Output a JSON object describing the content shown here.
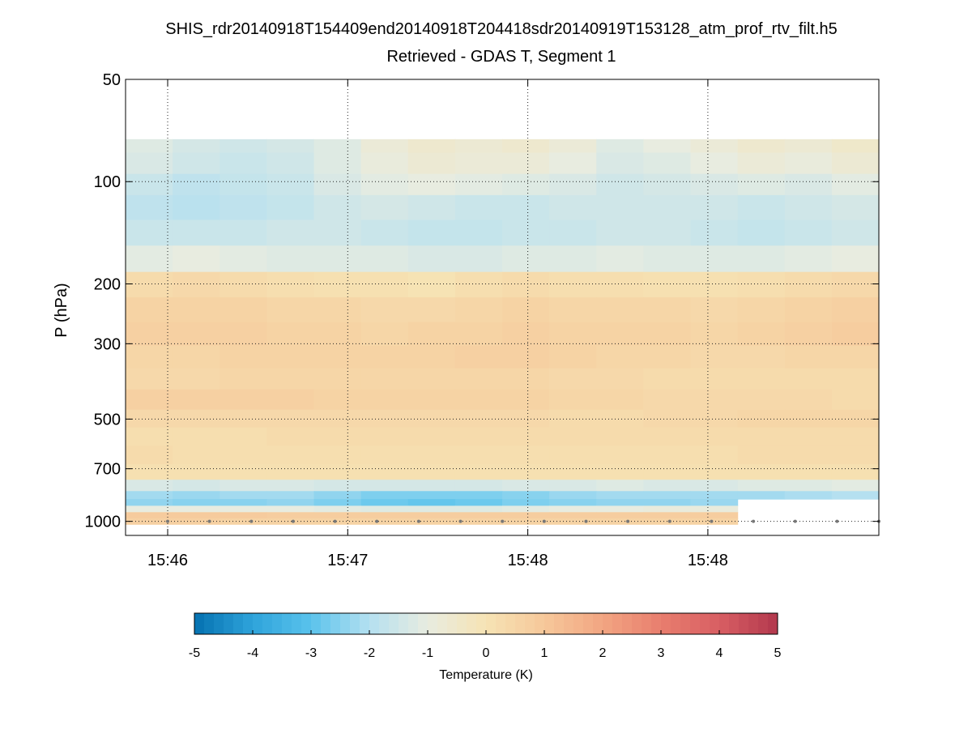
{
  "chart_data": {
    "type": "heatmap",
    "title": "SHIS_rdr20140918T154409end20140918T204418sdr20140919T153128_atm_prof_rtv_filt.h5",
    "subtitle": "Retrieved - GDAS T, Segment 1",
    "xlabel": "",
    "ylabel": "P (hPa)",
    "y_scale": "log",
    "y_reversed": true,
    "ylim": [
      50,
      1100
    ],
    "yticks": [
      50,
      100,
      200,
      300,
      500,
      700,
      1000
    ],
    "xticks": [
      "15:46",
      "15:47",
      "15:48",
      "15:48"
    ],
    "grid": "dotted",
    "colorbar": {
      "label": "Temperature (K)",
      "range": [
        -5,
        5
      ],
      "ticks": [
        -5,
        -4,
        -3,
        -2,
        -1,
        0,
        1,
        2,
        3,
        4,
        5
      ],
      "colors": [
        "#0571b0",
        "#2ea3db",
        "#5ac3ec",
        "#b5e0f0",
        "#e8ece0",
        "#f6e3b4",
        "#f6c89a",
        "#f2a582",
        "#e87e6e",
        "#d85e63",
        "#b2384d"
      ]
    },
    "profiles": {
      "pressure_levels_hPa": [
        75,
        90,
        100,
        120,
        140,
        170,
        200,
        240,
        280,
        330,
        380,
        440,
        500,
        560,
        640,
        720,
        790,
        840,
        880,
        920,
        960,
        1000
      ],
      "columns": 16,
      "values_K": [
        [
          -1.2,
          -1.4,
          -1.5,
          -1.4,
          -1.2,
          -0.8,
          -0.6,
          -0.7,
          -0.6,
          -0.8,
          -1.2,
          -1.0,
          -0.8,
          -0.6,
          -0.7,
          -0.5
        ],
        [
          -1.3,
          -1.5,
          -1.6,
          -1.5,
          -1.2,
          -0.9,
          -0.7,
          -0.8,
          -0.8,
          -1.0,
          -1.3,
          -1.2,
          -1.0,
          -0.8,
          -0.9,
          -0.7
        ],
        [
          -1.6,
          -1.8,
          -1.7,
          -1.6,
          -1.3,
          -1.1,
          -1.0,
          -1.1,
          -1.2,
          -1.3,
          -1.5,
          -1.4,
          -1.3,
          -1.2,
          -1.3,
          -1.1
        ],
        [
          -1.8,
          -1.9,
          -1.8,
          -1.7,
          -1.5,
          -1.4,
          -1.5,
          -1.6,
          -1.6,
          -1.5,
          -1.5,
          -1.5,
          -1.5,
          -1.6,
          -1.5,
          -1.4
        ],
        [
          -1.6,
          -1.6,
          -1.6,
          -1.5,
          -1.5,
          -1.6,
          -1.7,
          -1.7,
          -1.6,
          -1.6,
          -1.5,
          -1.5,
          -1.6,
          -1.7,
          -1.6,
          -1.5
        ],
        [
          -1.1,
          -1.0,
          -1.1,
          -1.2,
          -1.2,
          -1.2,
          -1.3,
          -1.3,
          -1.2,
          -1.2,
          -1.1,
          -1.2,
          -1.2,
          -1.2,
          -1.1,
          -1.0
        ],
        [
          0.3,
          0.4,
          0.3,
          0.2,
          0.1,
          0.1,
          0.0,
          0.2,
          0.3,
          0.2,
          0.2,
          0.1,
          0.1,
          0.2,
          0.3,
          0.4
        ],
        [
          0.6,
          0.6,
          0.6,
          0.5,
          0.5,
          0.4,
          0.4,
          0.5,
          0.6,
          0.5,
          0.5,
          0.5,
          0.4,
          0.5,
          0.6,
          0.7
        ],
        [
          0.7,
          0.7,
          0.7,
          0.6,
          0.6,
          0.5,
          0.6,
          0.6,
          0.7,
          0.6,
          0.6,
          0.6,
          0.5,
          0.6,
          0.7,
          0.8
        ],
        [
          0.5,
          0.5,
          0.6,
          0.6,
          0.6,
          0.6,
          0.6,
          0.7,
          0.7,
          0.6,
          0.5,
          0.5,
          0.4,
          0.4,
          0.5,
          0.5
        ],
        [
          0.4,
          0.4,
          0.5,
          0.5,
          0.5,
          0.5,
          0.5,
          0.5,
          0.5,
          0.4,
          0.4,
          0.3,
          0.3,
          0.3,
          0.3,
          0.3
        ],
        [
          0.7,
          0.7,
          0.7,
          0.7,
          0.6,
          0.6,
          0.6,
          0.6,
          0.6,
          0.5,
          0.5,
          0.4,
          0.4,
          0.4,
          0.4,
          0.3
        ],
        [
          0.4,
          0.4,
          0.4,
          0.4,
          0.4,
          0.4,
          0.4,
          0.4,
          0.4,
          0.3,
          0.3,
          0.4,
          0.4,
          0.5,
          0.5,
          0.5
        ],
        [
          0.2,
          0.2,
          0.2,
          0.3,
          0.3,
          0.3,
          0.3,
          0.3,
          0.3,
          0.3,
          0.3,
          0.3,
          0.3,
          0.3,
          0.3,
          0.3
        ],
        [
          0.3,
          0.2,
          0.2,
          0.2,
          0.2,
          0.2,
          0.2,
          0.2,
          0.2,
          0.2,
          0.2,
          0.2,
          0.2,
          0.3,
          0.3,
          0.3
        ],
        [
          0.1,
          0.1,
          0.1,
          0.1,
          0.1,
          0.1,
          0.1,
          0.1,
          0.1,
          0.1,
          0.1,
          0.1,
          0.1,
          0.1,
          0.1,
          0.1
        ],
        [
          -1.3,
          -1.4,
          -1.3,
          -1.3,
          -1.4,
          -1.4,
          -1.4,
          -1.4,
          -1.3,
          -1.3,
          -1.2,
          -1.3,
          -1.3,
          -1.2,
          -1.2,
          -1.1
        ],
        [
          -2.2,
          -2.3,
          -2.2,
          -2.2,
          -2.4,
          -2.6,
          -2.6,
          -2.6,
          -2.5,
          -2.3,
          -2.2,
          -2.2,
          -2.2,
          -2.2,
          -2.1,
          -2.0
        ],
        [
          -2.4,
          -2.5,
          -2.5,
          -2.4,
          -2.6,
          -2.8,
          -2.9,
          -2.8,
          -2.6,
          -2.5,
          -2.4,
          -2.4,
          -2.3,
          null,
          null,
          null
        ],
        [
          -1.0,
          -1.0,
          -1.0,
          -1.0,
          -1.1,
          -1.2,
          -1.2,
          -1.2,
          -1.1,
          -1.0,
          -1.0,
          -0.9,
          -0.9,
          null,
          null,
          null
        ],
        [
          0.9,
          0.9,
          0.9,
          0.8,
          0.8,
          0.8,
          0.8,
          0.8,
          0.8,
          0.8,
          0.8,
          0.8,
          0.8,
          null,
          null,
          null
        ],
        [
          0.7,
          0.7,
          0.6,
          0.6,
          0.6,
          0.6,
          0.6,
          0.6,
          0.6,
          0.6,
          0.6,
          0.6,
          0.6,
          null,
          null,
          null
        ]
      ]
    }
  }
}
